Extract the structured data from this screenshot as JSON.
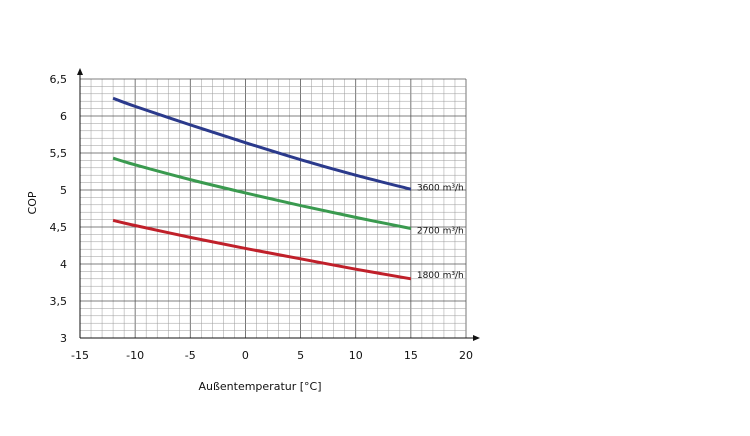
{
  "chart_data": {
    "type": "line",
    "title": "",
    "xlabel": "Außentemperatur [°C]",
    "ylabel": "COP",
    "xlim": [
      -15,
      20
    ],
    "ylim": [
      3,
      6.5
    ],
    "x_ticks": [
      -15,
      -10,
      -5,
      0,
      5,
      10,
      15,
      20
    ],
    "x_tick_labels": [
      "-15",
      "-10",
      "-5",
      "0",
      "5",
      "10",
      "15",
      "20"
    ],
    "y_ticks": [
      3,
      3.5,
      4,
      4.5,
      5,
      5.5,
      6,
      6.5
    ],
    "y_tick_labels": [
      "3",
      "3,5",
      "4",
      "4,5",
      "5",
      "5,5",
      "6",
      "6,5"
    ],
    "grid": true,
    "legend": "inline labels at line ends",
    "series": [
      {
        "name": "3600 m³/h",
        "color": "#2b3a8c",
        "x": [
          -12,
          -10,
          -5,
          0,
          5,
          10,
          15
        ],
        "y": [
          6.24,
          6.13,
          5.88,
          5.64,
          5.41,
          5.2,
          5.01
        ]
      },
      {
        "name": "2700 m³/h",
        "color": "#3a9a4f",
        "x": [
          -12,
          -10,
          -5,
          0,
          5,
          10,
          15
        ],
        "y": [
          5.43,
          5.34,
          5.14,
          4.96,
          4.79,
          4.63,
          4.48
        ]
      },
      {
        "name": "1800 m³/h",
        "color": "#c0202a",
        "x": [
          -12,
          -10,
          -5,
          0,
          5,
          10,
          15
        ],
        "y": [
          4.59,
          4.52,
          4.36,
          4.21,
          4.07,
          3.93,
          3.8
        ]
      }
    ]
  }
}
